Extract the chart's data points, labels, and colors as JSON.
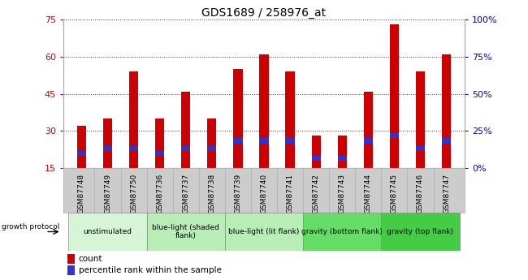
{
  "title": "GDS1689 / 258976_at",
  "samples": [
    "GSM87748",
    "GSM87749",
    "GSM87750",
    "GSM87736",
    "GSM87737",
    "GSM87738",
    "GSM87739",
    "GSM87740",
    "GSM87741",
    "GSM87742",
    "GSM87743",
    "GSM87744",
    "GSM87745",
    "GSM87746",
    "GSM87747"
  ],
  "counts": [
    32,
    35,
    54,
    35,
    46,
    35,
    55,
    61,
    54,
    28,
    28,
    46,
    73,
    54,
    61
  ],
  "percentile_ranks": [
    20,
    22,
    22,
    20,
    22,
    22,
    25,
    25,
    25,
    18,
    18,
    25,
    27,
    22,
    25
  ],
  "bar_bottom": 15,
  "ylim": [
    15,
    75
  ],
  "yticks": [
    15,
    30,
    45,
    60,
    75
  ],
  "bar_color": "#cc0000",
  "percentile_color": "#3333cc",
  "bar_width": 0.35,
  "grid_color": "#333333",
  "groups": [
    {
      "label": "unstimulated",
      "indices": [
        0,
        1,
        2
      ],
      "color": "#d6f5d6"
    },
    {
      "label": "blue-light (shaded\nflank)",
      "indices": [
        3,
        4,
        5
      ],
      "color": "#b8edb8"
    },
    {
      "label": "blue-light (lit flank)",
      "indices": [
        6,
        7,
        8
      ],
      "color": "#b8edb8"
    },
    {
      "label": "gravity (bottom flank)",
      "indices": [
        9,
        10,
        11
      ],
      "color": "#66dd66"
    },
    {
      "label": "gravity (top flank)",
      "indices": [
        12,
        13,
        14
      ],
      "color": "#44cc44"
    }
  ],
  "left_axis_color": "#cc0000",
  "right_axis_color": "#0000cc",
  "right_yticks": [
    0,
    25,
    50,
    75,
    100
  ],
  "right_ytick_labels": [
    "0%",
    "25%",
    "50%",
    "75%",
    "100%"
  ],
  "right_ylim": [
    0,
    100
  ],
  "bg_plot": "#ffffff",
  "bg_sample_labels": "#cccccc",
  "growth_protocol_label": "growth protocol",
  "legend_count_label": "count",
  "legend_pct_label": "percentile rank within the sample",
  "pct_bar_height": 2.0,
  "pct_bar_width": 0.35
}
